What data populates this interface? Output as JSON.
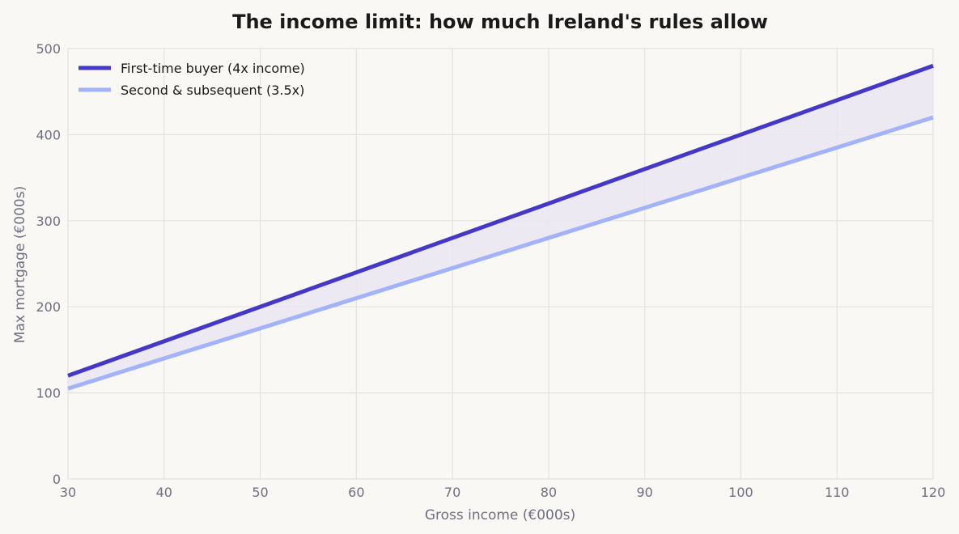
{
  "chart_data": {
    "type": "line",
    "title": "The income limit: how much Ireland's rules allow",
    "xlabel": "Gross income (€000s)",
    "ylabel": "Max mortgage (€000s)",
    "xlim": [
      30,
      120
    ],
    "ylim": [
      0,
      500
    ],
    "xticks": [
      30,
      40,
      50,
      60,
      70,
      80,
      90,
      100,
      110,
      120
    ],
    "yticks": [
      0,
      100,
      200,
      300,
      400,
      500
    ],
    "grid": true,
    "legend_position": "top-left",
    "shaded_region_between_series": true,
    "colors": {
      "background": "#f9f8f5",
      "grid": "#e4e2df",
      "fill": "#ebe6f2"
    },
    "series": [
      {
        "name": "First-time buyer (4x income)",
        "color": "#4338c8",
        "x": [
          30,
          120
        ],
        "y": [
          120,
          480
        ]
      },
      {
        "name": "Second & subsequent (3.5x)",
        "color": "#a3b3fa",
        "x": [
          30,
          120
        ],
        "y": [
          105,
          420
        ]
      }
    ]
  }
}
